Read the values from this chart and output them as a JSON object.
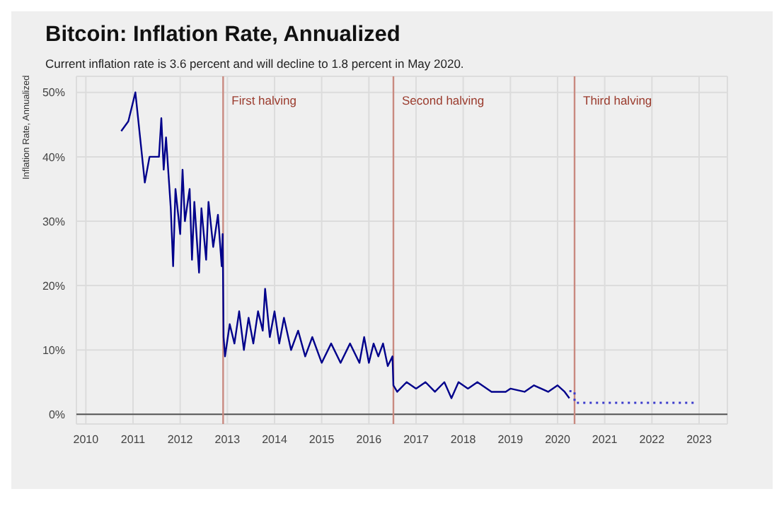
{
  "chart_data": {
    "type": "line",
    "title": "Bitcoin: Inflation Rate, Annualized",
    "subtitle": "Current inflation rate is 3.6 percent and will decline to 1.8 percent in May 2020.",
    "ylabel": "Inflation Rate, Annualized",
    "xlim": [
      2009.8,
      2023.6
    ],
    "xticks": [
      2010,
      2011,
      2012,
      2013,
      2014,
      2015,
      2016,
      2017,
      2018,
      2019,
      2020,
      2021,
      2022,
      2023
    ],
    "ylim": [
      -1.5,
      52.5
    ],
    "yticks": [
      {
        "value": 0,
        "label": "0%"
      },
      {
        "value": 10,
        "label": "10%"
      },
      {
        "value": 20,
        "label": "20%"
      },
      {
        "value": 30,
        "label": "30%"
      },
      {
        "value": 40,
        "label": "40%"
      },
      {
        "value": 50,
        "label": "50%"
      }
    ],
    "grid": true,
    "legend": false,
    "marker": "none",
    "series": [
      {
        "color": "#00008b",
        "line_style": "solid",
        "x": [
          2010.75,
          2010.9,
          2011.05,
          2011.25,
          2011.35,
          2011.55,
          2011.6,
          2011.65,
          2011.7,
          2011.8,
          2011.85,
          2011.9,
          2012.0,
          2012.05,
          2012.1,
          2012.2,
          2012.25,
          2012.3,
          2012.4,
          2012.45,
          2012.55,
          2012.6,
          2012.7,
          2012.8,
          2012.88,
          2012.9,
          2012.92,
          2012.95,
          2013.05,
          2013.15,
          2013.25,
          2013.35,
          2013.45,
          2013.55,
          2013.65,
          2013.75,
          2013.8,
          2013.9,
          2014.0,
          2014.1,
          2014.2,
          2014.35,
          2014.5,
          2014.65,
          2014.8,
          2015.0,
          2015.2,
          2015.4,
          2015.6,
          2015.8,
          2015.9,
          2016.0,
          2016.1,
          2016.2,
          2016.3,
          2016.4,
          2016.5,
          2016.52,
          2016.6,
          2016.8,
          2017.0,
          2017.2,
          2017.4,
          2017.6,
          2017.75,
          2017.9,
          2018.1,
          2018.3,
          2018.6,
          2018.9,
          2019.0,
          2019.3,
          2019.5,
          2019.8,
          2020.0,
          2020.15,
          2020.25
        ],
        "values": [
          44,
          45.5,
          50,
          36,
          40,
          40,
          46,
          38,
          43,
          32,
          23,
          35,
          28,
          38,
          30,
          35,
          24,
          33,
          22,
          32,
          24,
          33,
          26,
          31,
          23,
          28,
          12,
          9,
          14,
          11,
          16,
          10,
          15,
          11,
          16,
          13,
          19.5,
          12,
          16,
          11,
          15,
          10,
          13,
          9,
          12,
          8,
          11,
          8,
          11,
          8,
          12,
          8,
          11,
          9,
          11,
          7.5,
          9,
          4.5,
          3.5,
          5,
          4,
          5,
          3.5,
          5,
          2.5,
          5,
          4,
          5,
          3.5,
          3.5,
          4,
          3.5,
          4.5,
          3.5,
          4.5,
          3.5,
          2.5
        ]
      },
      {
        "color": "#3a3acc",
        "line_style": "dotted",
        "x": [
          2020.25,
          2020.36,
          2020.36,
          2022.95
        ],
        "values": [
          3.6,
          3.6,
          1.8,
          1.8
        ]
      }
    ],
    "ref_lines": [
      {
        "axis": "x",
        "value": 2012.91,
        "label": "First halving",
        "color": "#c98a80"
      },
      {
        "axis": "x",
        "value": 2016.52,
        "label": "Second halving",
        "color": "#c98a80"
      },
      {
        "axis": "x",
        "value": 2020.36,
        "label": "Third halving",
        "color": "#c98a80"
      }
    ]
  }
}
